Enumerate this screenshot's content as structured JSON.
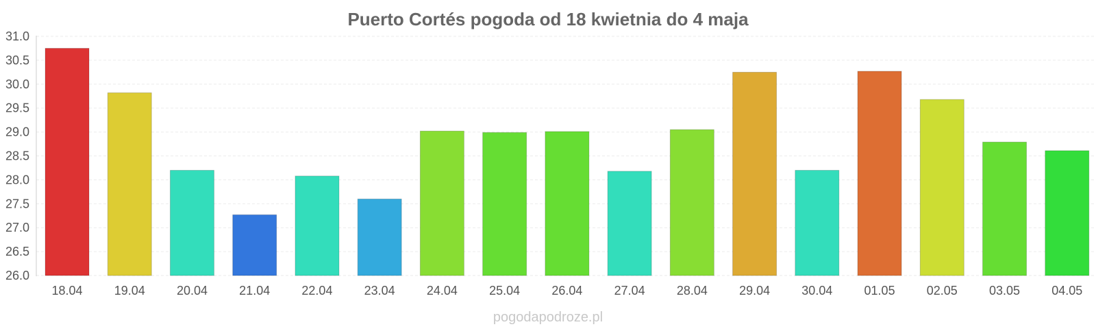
{
  "chart_data": {
    "type": "bar",
    "title": "Puerto Cortés pogoda od 18 kwietnia do 4 maja",
    "xlabel": "",
    "ylabel": "",
    "ylim": [
      26.0,
      31.0
    ],
    "yticks": [
      "26.0",
      "26.5",
      "27.0",
      "27.5",
      "28.0",
      "28.5",
      "29.0",
      "29.5",
      "30.0",
      "30.5",
      "31.0"
    ],
    "categories": [
      "18.04",
      "19.04",
      "20.04",
      "21.04",
      "22.04",
      "23.04",
      "24.04",
      "25.04",
      "26.04",
      "27.04",
      "28.04",
      "29.04",
      "30.04",
      "01.05",
      "02.05",
      "03.05",
      "04.05"
    ],
    "values": [
      30.75,
      29.82,
      28.2,
      27.27,
      28.08,
      27.6,
      29.02,
      28.99,
      29.01,
      28.18,
      29.05,
      30.25,
      28.2,
      30.27,
      29.68,
      28.79,
      28.61
    ],
    "colors": [
      "#dd3333",
      "#ddcc33",
      "#33ddbb",
      "#3377dd",
      "#33ddbb",
      "#33aadd",
      "#88dd33",
      "#66dd33",
      "#66dd33",
      "#33ddbb",
      "#88dd33",
      "#ddaa33",
      "#33ddbb",
      "#dd6e33",
      "#ccdd33",
      "#66dd33",
      "#33dd3b"
    ],
    "grid": true,
    "legend": "none"
  },
  "watermark": "pogodapodroze.pl"
}
